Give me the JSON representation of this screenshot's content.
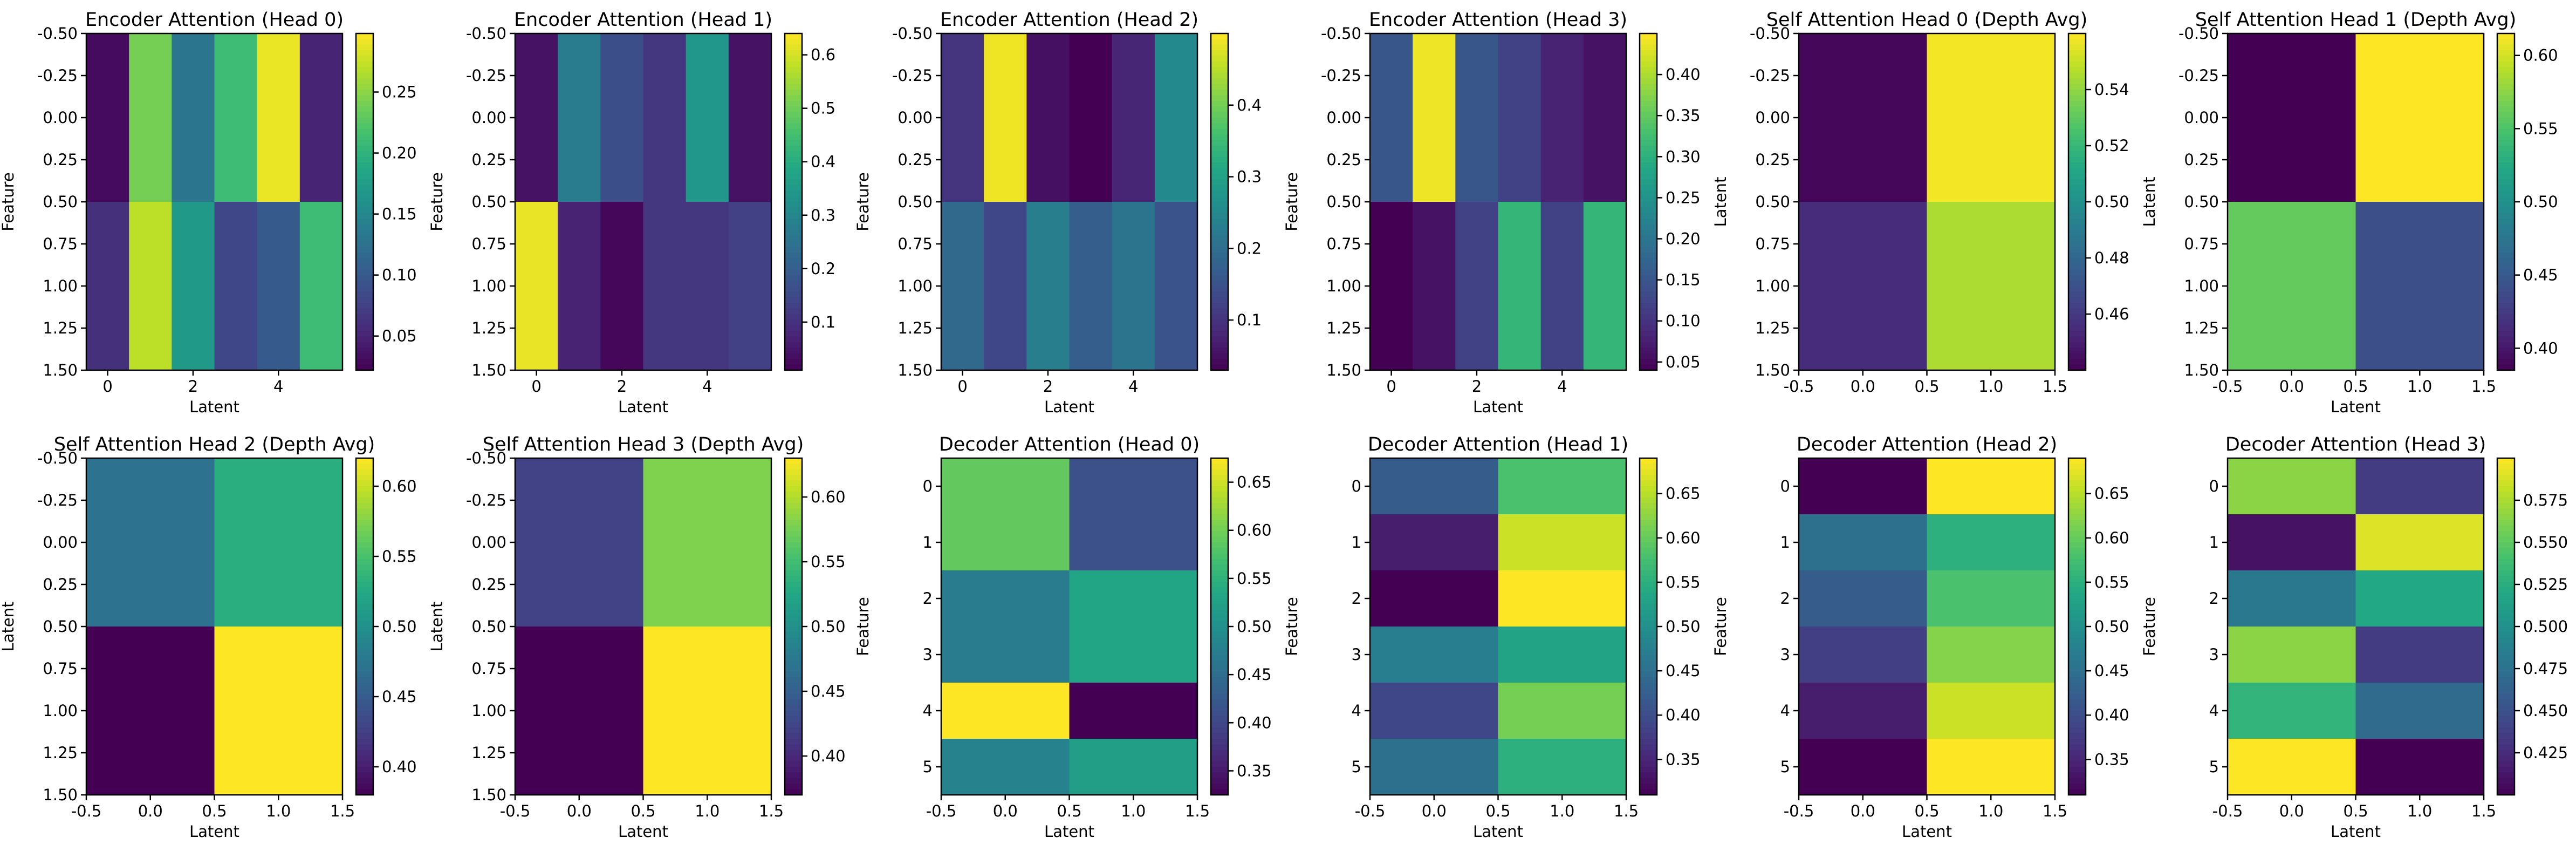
{
  "chart_data": [
    {
      "type": "heatmap",
      "title": "Encoder Attention (Head 0)",
      "xlabel": "Latent",
      "ylabel": "Feature",
      "xlim": [
        -0.5,
        5.5
      ],
      "ylim": [
        1.5,
        -0.5
      ],
      "xticks": [
        "0",
        "2",
        "4"
      ],
      "yticks": [
        "-0.50",
        "-0.25",
        "0.00",
        "0.25",
        "0.50",
        "0.75",
        "1.00",
        "1.25",
        "1.50"
      ],
      "vmin": 0.022,
      "vmax": 0.298,
      "cbar_ticks": [
        "0.05",
        "0.10",
        "0.15",
        "0.20",
        "0.25"
      ],
      "values": [
        [
          0.03,
          0.24,
          0.13,
          0.21,
          0.29,
          0.05
        ],
        [
          0.06,
          0.27,
          0.17,
          0.08,
          0.1,
          0.21
        ]
      ]
    },
    {
      "type": "heatmap",
      "title": "Encoder Attention (Head 1)",
      "xlabel": "Latent",
      "ylabel": "Feature",
      "xlim": [
        -0.5,
        5.5
      ],
      "ylim": [
        1.5,
        -0.5
      ],
      "xticks": [
        "0",
        "2",
        "4"
      ],
      "yticks": [
        "-0.50",
        "-0.25",
        "0.00",
        "0.25",
        "0.50",
        "0.75",
        "1.00",
        "1.25",
        "1.50"
      ],
      "vmin": 0.01,
      "vmax": 0.64,
      "cbar_ticks": [
        "0.1",
        "0.2",
        "0.3",
        "0.4",
        "0.5",
        "0.6"
      ],
      "values": [
        [
          0.04,
          0.27,
          0.16,
          0.11,
          0.34,
          0.04
        ],
        [
          0.62,
          0.07,
          0.02,
          0.11,
          0.11,
          0.13
        ]
      ]
    },
    {
      "type": "heatmap",
      "title": "Encoder Attention (Head 2)",
      "xlabel": "Latent",
      "ylabel": "Feature",
      "xlim": [
        -0.5,
        5.5
      ],
      "ylim": [
        1.5,
        -0.5
      ],
      "xticks": [
        "0",
        "2",
        "4"
      ],
      "yticks": [
        "-0.50",
        "-0.25",
        "0.00",
        "0.25",
        "0.50",
        "0.75",
        "1.00",
        "1.25",
        "1.50"
      ],
      "vmin": 0.03,
      "vmax": 0.5,
      "cbar_ticks": [
        "0.1",
        "0.2",
        "0.3",
        "0.4"
      ],
      "values": [
        [
          0.1,
          0.49,
          0.05,
          0.03,
          0.08,
          0.25
        ],
        [
          0.19,
          0.13,
          0.23,
          0.17,
          0.21,
          0.15
        ]
      ]
    },
    {
      "type": "heatmap",
      "title": "Encoder Attention (Head 3)",
      "xlabel": "Latent",
      "ylabel": "Feature",
      "xlim": [
        -0.5,
        5.5
      ],
      "ylim": [
        1.5,
        -0.5
      ],
      "xticks": [
        "0",
        "2",
        "4"
      ],
      "yticks": [
        "-0.50",
        "-0.25",
        "0.00",
        "0.25",
        "0.50",
        "0.75",
        "1.00",
        "1.25",
        "1.50"
      ],
      "vmin": 0.04,
      "vmax": 0.45,
      "cbar_ticks": [
        "0.05",
        "0.10",
        "0.15",
        "0.20",
        "0.25",
        "0.30",
        "0.35",
        "0.40"
      ],
      "values": [
        [
          0.15,
          0.44,
          0.15,
          0.12,
          0.08,
          0.06
        ],
        [
          0.04,
          0.06,
          0.12,
          0.31,
          0.12,
          0.31
        ]
      ]
    },
    {
      "type": "heatmap",
      "title": "Self Attention Head 0 (Depth Avg)",
      "xlabel": "",
      "ylabel": "Latent",
      "xlim": [
        -0.5,
        1.5
      ],
      "ylim": [
        1.5,
        -0.5
      ],
      "xticks": [
        "-0.5",
        "0.0",
        "0.5",
        "1.0",
        "1.5"
      ],
      "yticks": [
        "-0.50",
        "-0.25",
        "0.00",
        "0.25",
        "0.50",
        "0.75",
        "1.00",
        "1.25",
        "1.50"
      ],
      "vmin": 0.44,
      "vmax": 0.56,
      "cbar_ticks": [
        "0.46",
        "0.48",
        "0.50",
        "0.52",
        "0.54"
      ],
      "values": [
        [
          0.442,
          0.558
        ],
        [
          0.455,
          0.545
        ]
      ]
    },
    {
      "type": "heatmap",
      "title": "Self Attention Head 1 (Depth Avg)",
      "xlabel": "Latent",
      "ylabel": "Latent",
      "xlim": [
        -0.5,
        1.5
      ],
      "ylim": [
        1.5,
        -0.5
      ],
      "xticks": [
        "-0.5",
        "0.0",
        "0.5",
        "1.0",
        "1.5"
      ],
      "yticks": [
        "-0.50",
        "-0.25",
        "0.00",
        "0.25",
        "0.50",
        "0.75",
        "1.00",
        "1.25",
        "1.50"
      ],
      "vmin": 0.385,
      "vmax": 0.615,
      "cbar_ticks": [
        "0.40",
        "0.45",
        "0.50",
        "0.55",
        "0.60"
      ],
      "values": [
        [
          0.385,
          0.615
        ],
        [
          0.56,
          0.44
        ]
      ]
    },
    {
      "type": "heatmap",
      "title": "Self Attention Head 2 (Depth Avg)",
      "xlabel": "Latent",
      "ylabel": "Latent",
      "xlim": [
        -0.5,
        1.5
      ],
      "ylim": [
        1.5,
        -0.5
      ],
      "xticks": [
        "-0.5",
        "0.0",
        "0.5",
        "1.0",
        "1.5"
      ],
      "yticks": [
        "-0.50",
        "-0.25",
        "0.00",
        "0.25",
        "0.50",
        "0.75",
        "1.00",
        "1.25",
        "1.50"
      ],
      "vmin": 0.38,
      "vmax": 0.62,
      "cbar_ticks": [
        "0.40",
        "0.45",
        "0.50",
        "0.55",
        "0.60"
      ],
      "values": [
        [
          0.47,
          0.53
        ],
        [
          0.38,
          0.62
        ]
      ]
    },
    {
      "type": "heatmap",
      "title": "Self Attention Head 3 (Depth Avg)",
      "xlabel": "Latent",
      "ylabel": "Latent",
      "xlim": [
        -0.5,
        1.5
      ],
      "ylim": [
        1.5,
        -0.5
      ],
      "xticks": [
        "-0.5",
        "0.0",
        "0.5",
        "1.0",
        "1.5"
      ],
      "yticks": [
        "-0.50",
        "-0.25",
        "0.00",
        "0.25",
        "0.50",
        "0.75",
        "1.00",
        "1.25",
        "1.50"
      ],
      "vmin": 0.37,
      "vmax": 0.63,
      "cbar_ticks": [
        "0.40",
        "0.45",
        "0.50",
        "0.55",
        "0.60"
      ],
      "values": [
        [
          0.42,
          0.58
        ],
        [
          0.37,
          0.63
        ]
      ]
    },
    {
      "type": "heatmap",
      "title": "Decoder Attention (Head 0)",
      "xlabel": "Latent",
      "ylabel": "Feature",
      "xlim": [
        -0.5,
        1.5
      ],
      "ylim": [
        5.5,
        -0.5
      ],
      "xticks": [
        "-0.5",
        "0.0",
        "0.5",
        "1.0",
        "1.5"
      ],
      "yticks": [
        "0",
        "1",
        "2",
        "3",
        "4",
        "5"
      ],
      "vmin": 0.325,
      "vmax": 0.675,
      "cbar_ticks": [
        "0.35",
        "0.40",
        "0.45",
        "0.50",
        "0.55",
        "0.60",
        "0.65"
      ],
      "values": [
        [
          0.59,
          0.41
        ],
        [
          0.59,
          0.41
        ],
        [
          0.47,
          0.53
        ],
        [
          0.47,
          0.53
        ],
        [
          0.675,
          0.325
        ],
        [
          0.48,
          0.52
        ]
      ]
    },
    {
      "type": "heatmap",
      "title": "Decoder Attention (Head 1)",
      "xlabel": "Latent",
      "ylabel": "Feature",
      "xlim": [
        -0.5,
        1.5
      ],
      "ylim": [
        5.5,
        -0.5
      ],
      "xticks": [
        "-0.5",
        "0.0",
        "0.5",
        "1.0",
        "1.5"
      ],
      "yticks": [
        "0",
        "1",
        "2",
        "3",
        "4",
        "5"
      ],
      "vmin": 0.31,
      "vmax": 0.69,
      "cbar_ticks": [
        "0.35",
        "0.40",
        "0.45",
        "0.50",
        "0.55",
        "0.60",
        "0.65"
      ],
      "values": [
        [
          0.42,
          0.58
        ],
        [
          0.34,
          0.66
        ],
        [
          0.31,
          0.69
        ],
        [
          0.47,
          0.53
        ],
        [
          0.39,
          0.61
        ],
        [
          0.45,
          0.55
        ]
      ]
    },
    {
      "type": "heatmap",
      "title": "Decoder Attention (Head 2)",
      "xlabel": "Latent",
      "ylabel": "Feature",
      "xlim": [
        -0.5,
        1.5
      ],
      "ylim": [
        5.5,
        -0.5
      ],
      "xticks": [
        "-0.5",
        "0.0",
        "0.5",
        "1.0",
        "1.5"
      ],
      "yticks": [
        "0",
        "1",
        "2",
        "3",
        "4",
        "5"
      ],
      "vmin": 0.31,
      "vmax": 0.69,
      "cbar_ticks": [
        "0.35",
        "0.40",
        "0.45",
        "0.50",
        "0.55",
        "0.60",
        "0.65"
      ],
      "values": [
        [
          0.31,
          0.69
        ],
        [
          0.45,
          0.55
        ],
        [
          0.42,
          0.58
        ],
        [
          0.38,
          0.62
        ],
        [
          0.34,
          0.66
        ],
        [
          0.31,
          0.69
        ]
      ]
    },
    {
      "type": "heatmap",
      "title": "Decoder Attention (Head 3)",
      "xlabel": "Latent",
      "ylabel": "Feature",
      "xlim": [
        -0.5,
        1.5
      ],
      "ylim": [
        5.5,
        -0.5
      ],
      "xticks": [
        "-0.5",
        "0.0",
        "0.5",
        "1.0",
        "1.5"
      ],
      "yticks": [
        "0",
        "1",
        "2",
        "3",
        "4",
        "5"
      ],
      "vmin": 0.4,
      "vmax": 0.6,
      "cbar_ticks": [
        "0.425",
        "0.450",
        "0.475",
        "0.500",
        "0.525",
        "0.550",
        "0.575"
      ],
      "values": [
        [
          0.565,
          0.435
        ],
        [
          0.41,
          0.59
        ],
        [
          0.48,
          0.52
        ],
        [
          0.565,
          0.435
        ],
        [
          0.53,
          0.47
        ],
        [
          0.6,
          0.4
        ]
      ]
    }
  ]
}
